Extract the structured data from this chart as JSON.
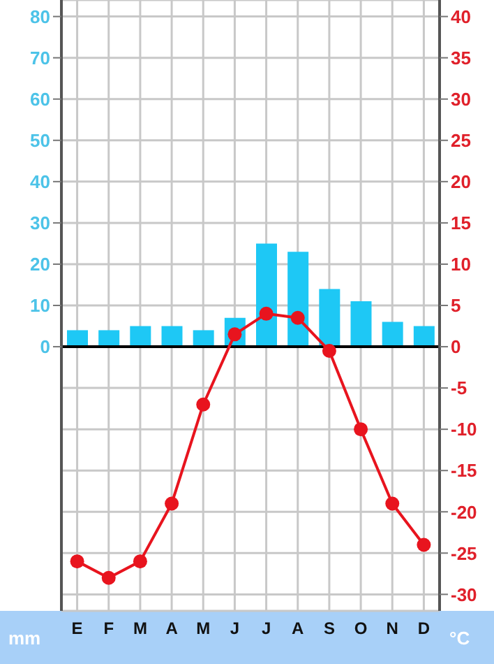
{
  "chart_data": {
    "type": "bar",
    "categories": [
      "E",
      "F",
      "M",
      "A",
      "M",
      "J",
      "J",
      "A",
      "S",
      "O",
      "N",
      "D"
    ],
    "ylabel": "mm",
    "y2label": "°C",
    "series": [
      {
        "color": "#1ec8f5",
        "values": [
          4,
          4,
          5,
          5,
          4,
          7,
          25,
          23,
          14,
          11,
          6,
          5
        ]
      },
      {
        "type": "line",
        "axis": "y2",
        "color": "#e8141e",
        "values": [
          -26,
          -28,
          -26,
          -19,
          -7,
          1.5,
          4,
          3.5,
          -0.5,
          -10,
          -19,
          -24
        ]
      }
    ],
    "ylim": [
      -64,
      84
    ],
    "yticks": [
      0,
      10,
      20,
      30,
      40,
      50,
      60,
      70,
      80
    ],
    "y2lim": [
      -32,
      42
    ],
    "y2ticks": [
      -30,
      -25,
      -20,
      -15,
      -10,
      -5,
      0,
      5,
      10,
      15,
      20,
      25,
      30,
      35,
      40
    ],
    "ref_lines": [
      {
        "axis": "y",
        "value": 0,
        "color": "#000000"
      }
    ],
    "grid": true,
    "marker": "circle",
    "line_style": "solid"
  }
}
